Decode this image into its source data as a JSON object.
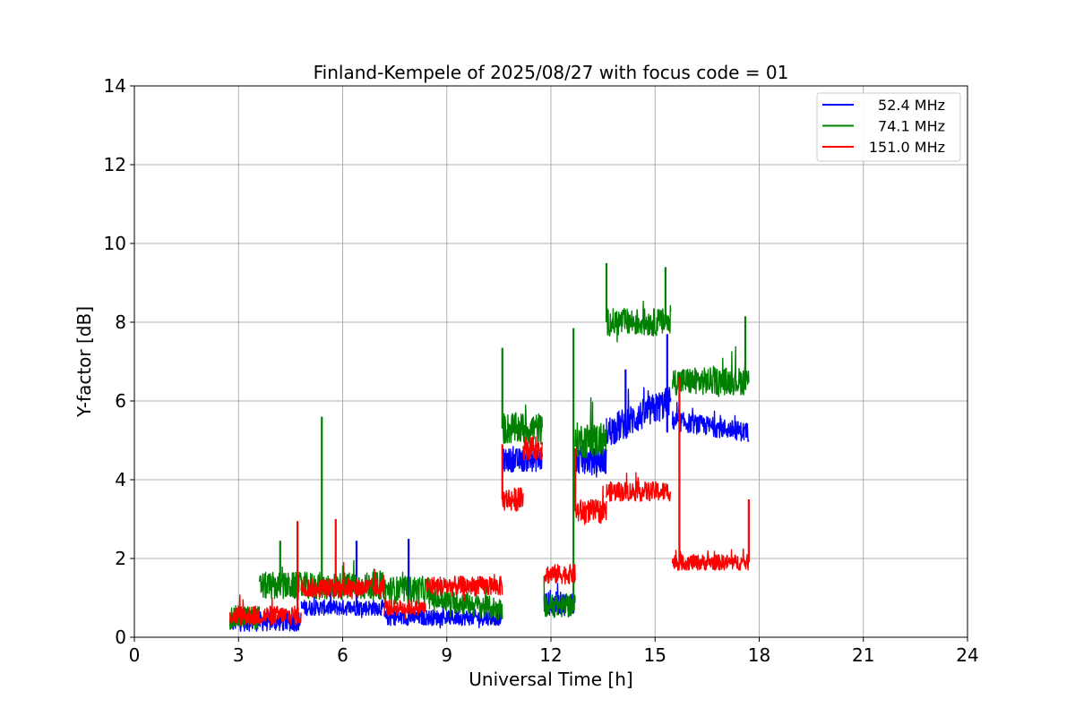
{
  "chart_data": {
    "type": "line",
    "title": "Finland-Kempele of 2025/08/27 with focus code = 01",
    "xlabel": "Universal Time [h]",
    "ylabel": "Y-factor [dB]",
    "xlim": [
      0,
      24
    ],
    "ylim": [
      0,
      14
    ],
    "xticks": [
      0,
      3,
      6,
      9,
      12,
      15,
      18,
      21,
      24
    ],
    "yticks": [
      0,
      2,
      4,
      6,
      8,
      10,
      12,
      14
    ],
    "grid": true,
    "legend_position": "top-right",
    "series": [
      {
        "name": "52.4 MHz",
        "color": "#0000ff",
        "segments": [
          {
            "start": 2.75,
            "end": 4.8,
            "base": 0.4,
            "noise": 0.25
          },
          {
            "start": 4.8,
            "end": 7.2,
            "base": 0.75,
            "noise": 0.2
          },
          {
            "start": 7.2,
            "end": 10.6,
            "base": 0.5,
            "noise": 0.2
          },
          {
            "start": 10.6,
            "end": 11.75,
            "base": 4.5,
            "noise": 0.3
          },
          {
            "start": 11.8,
            "end": 12.7,
            "base": 0.85,
            "noise": 0.3
          },
          {
            "start": 12.7,
            "end": 13.6,
            "base": 4.5,
            "noise": 0.35
          },
          {
            "start": 13.6,
            "end": 15.45,
            "base": 5.2,
            "noise": 0.4,
            "slope": 0.8
          },
          {
            "start": 15.5,
            "end": 17.7,
            "base": 5.5,
            "noise": 0.25,
            "slope": -0.3
          }
        ],
        "spikes": [
          {
            "x": 14.15,
            "y": 6.8
          },
          {
            "x": 15.35,
            "y": 7.7
          },
          {
            "x": 6.4,
            "y": 2.45
          },
          {
            "x": 7.9,
            "y": 2.5
          }
        ]
      },
      {
        "name": "74.1 MHz",
        "color": "#008000",
        "segments": [
          {
            "start": 2.75,
            "end": 3.6,
            "base": 0.5,
            "noise": 0.3
          },
          {
            "start": 3.6,
            "end": 7.2,
            "base": 1.3,
            "noise": 0.35
          },
          {
            "start": 7.2,
            "end": 8.5,
            "base": 1.2,
            "noise": 0.35
          },
          {
            "start": 8.5,
            "end": 10.6,
            "base": 1.0,
            "noise": 0.3,
            "slope": -0.3
          },
          {
            "start": 10.6,
            "end": 11.75,
            "base": 5.3,
            "noise": 0.4
          },
          {
            "start": 11.8,
            "end": 12.7,
            "base": 0.8,
            "noise": 0.3
          },
          {
            "start": 12.7,
            "end": 13.6,
            "base": 5.0,
            "noise": 0.45
          },
          {
            "start": 13.6,
            "end": 15.45,
            "base": 8.0,
            "noise": 0.35
          },
          {
            "start": 15.5,
            "end": 17.7,
            "base": 6.5,
            "noise": 0.35
          }
        ],
        "spikes": [
          {
            "x": 5.4,
            "y": 5.6
          },
          {
            "x": 10.6,
            "y": 7.35
          },
          {
            "x": 12.65,
            "y": 7.85
          },
          {
            "x": 13.6,
            "y": 9.5
          },
          {
            "x": 15.3,
            "y": 9.4
          },
          {
            "x": 17.6,
            "y": 8.15
          },
          {
            "x": 4.2,
            "y": 2.45
          }
        ]
      },
      {
        "name": "151.0 MHz",
        "color": "#ff0000",
        "segments": [
          {
            "start": 2.75,
            "end": 4.8,
            "base": 0.55,
            "noise": 0.25
          },
          {
            "start": 4.8,
            "end": 7.2,
            "base": 1.25,
            "noise": 0.25
          },
          {
            "start": 7.2,
            "end": 8.4,
            "base": 0.75,
            "noise": 0.2
          },
          {
            "start": 8.4,
            "end": 10.6,
            "base": 1.3,
            "noise": 0.25
          },
          {
            "start": 10.6,
            "end": 11.2,
            "base": 3.5,
            "noise": 0.3
          },
          {
            "start": 11.2,
            "end": 11.75,
            "base": 4.8,
            "noise": 0.3
          },
          {
            "start": 11.8,
            "end": 12.7,
            "base": 1.6,
            "noise": 0.25
          },
          {
            "start": 12.7,
            "end": 13.6,
            "base": 3.2,
            "noise": 0.3
          },
          {
            "start": 13.6,
            "end": 15.45,
            "base": 3.7,
            "noise": 0.25
          },
          {
            "start": 15.5,
            "end": 17.7,
            "base": 1.9,
            "noise": 0.2
          }
        ],
        "spikes": [
          {
            "x": 4.7,
            "y": 2.95
          },
          {
            "x": 5.8,
            "y": 3.0
          },
          {
            "x": 10.6,
            "y": 4.9
          },
          {
            "x": 12.7,
            "y": 4.8
          },
          {
            "x": 15.7,
            "y": 6.6
          },
          {
            "x": 17.7,
            "y": 3.5
          }
        ]
      }
    ]
  }
}
